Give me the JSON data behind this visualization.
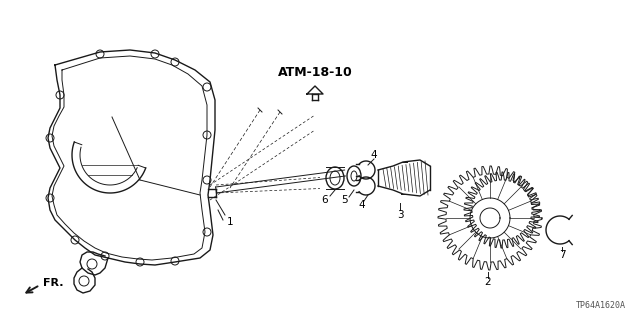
{
  "bg_color": "#ffffff",
  "line_color": "#1a1a1a",
  "text_color": "#000000",
  "title_ref": "ATM-18-10",
  "diagram_code": "TP64A1620A",
  "fr_label": "FR."
}
